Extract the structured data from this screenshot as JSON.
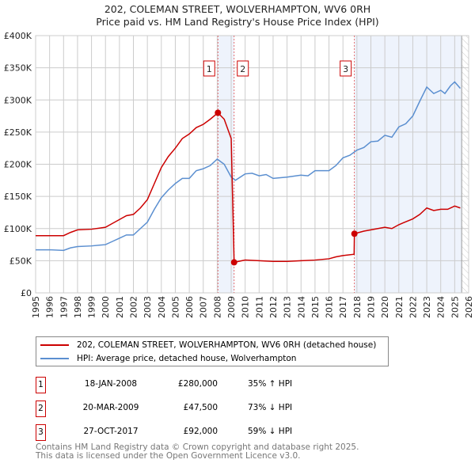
{
  "title_line1": "202, COLEMAN STREET, WOLVERHAMPTON, WV6 0RH",
  "title_line2": "Price paid vs. HM Land Registry's House Price Index (HPI)",
  "chart_data": {
    "type": "line",
    "title": "202, COLEMAN STREET, WOLVERHAMPTON, WV6 0RH — Price paid vs. HM Land Registry's House Price Index (HPI)",
    "xlim": [
      1995,
      2026
    ],
    "ylim": [
      0,
      400000
    ],
    "x_ticks": [
      1995,
      1996,
      1997,
      1998,
      1999,
      2000,
      2001,
      2002,
      2003,
      2004,
      2005,
      2006,
      2007,
      2008,
      2009,
      2010,
      2011,
      2012,
      2013,
      2014,
      2015,
      2016,
      2017,
      2018,
      2019,
      2020,
      2021,
      2022,
      2023,
      2024,
      2025,
      2026
    ],
    "y_ticks": [
      {
        "v": 0,
        "label": "£0"
      },
      {
        "v": 50000,
        "label": "£50K"
      },
      {
        "v": 100000,
        "label": "£100K"
      },
      {
        "v": 150000,
        "label": "£150K"
      },
      {
        "v": 200000,
        "label": "£200K"
      },
      {
        "v": 250000,
        "label": "£250K"
      },
      {
        "v": 300000,
        "label": "£300K"
      },
      {
        "v": 350000,
        "label": "£350K"
      },
      {
        "v": 400000,
        "label": "£400K"
      }
    ],
    "grid": true,
    "series": [
      {
        "name": "202, COLEMAN STREET, WOLVERHAMPTON, WV6 0RH (detached house)",
        "color": "#cc0000",
        "x": [
          1995,
          1996,
          1997,
          1997.5,
          1998,
          1999,
          2000,
          2000.5,
          2001,
          2001.5,
          2002,
          2002.5,
          2003,
          2003.5,
          2004,
          2004.5,
          2005,
          2005.5,
          2006,
          2006.5,
          2007,
          2007.5,
          2008.05,
          2008.5,
          2009.0,
          2009.21,
          2010,
          2011,
          2012,
          2013,
          2014,
          2015,
          2016,
          2016.5,
          2017,
          2017.8,
          2017.82,
          2018.5,
          2019,
          2020,
          2020.5,
          2021,
          2022,
          2022.5,
          2023,
          2023.5,
          2024,
          2024.5,
          2025,
          2025.4
        ],
        "y": [
          89000,
          89000,
          89000,
          94000,
          98000,
          99000,
          102000,
          108000,
          114000,
          120000,
          122000,
          132000,
          145000,
          170000,
          195000,
          212000,
          225000,
          240000,
          247000,
          257000,
          262000,
          270000,
          280000,
          270000,
          240000,
          47500,
          51000,
          50000,
          49000,
          49000,
          50000,
          51000,
          53000,
          56000,
          58000,
          60000,
          92000,
          96000,
          98000,
          102000,
          100000,
          106000,
          115000,
          122000,
          132000,
          128000,
          130000,
          130000,
          135000,
          132000
        ]
      },
      {
        "name": "HPI: Average price, detached house, Wolverhampton",
        "color": "#5b8fd0",
        "x": [
          1995,
          1996,
          1997,
          1997.5,
          1998,
          1999,
          2000,
          2000.5,
          2001,
          2001.5,
          2002,
          2002.5,
          2003,
          2003.5,
          2004,
          2004.5,
          2005,
          2005.5,
          2006,
          2006.5,
          2007,
          2007.5,
          2008,
          2008.5,
          2009,
          2009.3,
          2010,
          2010.5,
          2011,
          2011.5,
          2012,
          2013,
          2014,
          2014.5,
          2015,
          2016,
          2016.5,
          2017,
          2017.5,
          2018,
          2018.5,
          2019,
          2019.5,
          2020,
          2020.5,
          2021,
          2021.5,
          2022,
          2022.5,
          2023,
          2023.5,
          2024,
          2024.3,
          2024.7,
          2025,
          2025.4
        ],
        "y": [
          67000,
          67000,
          66000,
          70000,
          72000,
          73000,
          75000,
          80000,
          85000,
          90000,
          90000,
          100000,
          110000,
          130000,
          148000,
          160000,
          170000,
          178000,
          178000,
          190000,
          193000,
          198000,
          208000,
          200000,
          180000,
          175000,
          185000,
          186000,
          182000,
          184000,
          178000,
          180000,
          183000,
          182000,
          190000,
          190000,
          198000,
          210000,
          214000,
          222000,
          226000,
          235000,
          236000,
          245000,
          242000,
          258000,
          263000,
          275000,
          298000,
          320000,
          310000,
          315000,
          310000,
          322000,
          328000,
          318000
        ]
      }
    ],
    "sales": [
      {
        "label": "1",
        "x": 2008.05,
        "y": 280000,
        "date": "18-JAN-2008",
        "price": "£280,000",
        "hpi": "35% ↑ HPI"
      },
      {
        "label": "2",
        "x": 2009.21,
        "y": 47500,
        "date": "20-MAR-2009",
        "price": "£47,500",
        "hpi": "73% ↓ HPI"
      },
      {
        "label": "3",
        "x": 2017.82,
        "y": 92000,
        "date": "27-OCT-2017",
        "price": "£92,000",
        "hpi": "59% ↓ HPI"
      }
    ],
    "shaded_ranges": [
      [
        2008.05,
        2009.21
      ],
      [
        2017.82,
        2025.5
      ]
    ],
    "hatched_from": 2025.5
  },
  "legend": {
    "red": "202, COLEMAN STREET, WOLVERHAMPTON, WV6 0RH (detached house)",
    "blue": "HPI: Average price, detached house, Wolverhampton"
  },
  "footer": {
    "line1": "Contains HM Land Registry data © Crown copyright and database right 2025.",
    "line2": "This data is licensed under the Open Government Licence v3.0."
  }
}
